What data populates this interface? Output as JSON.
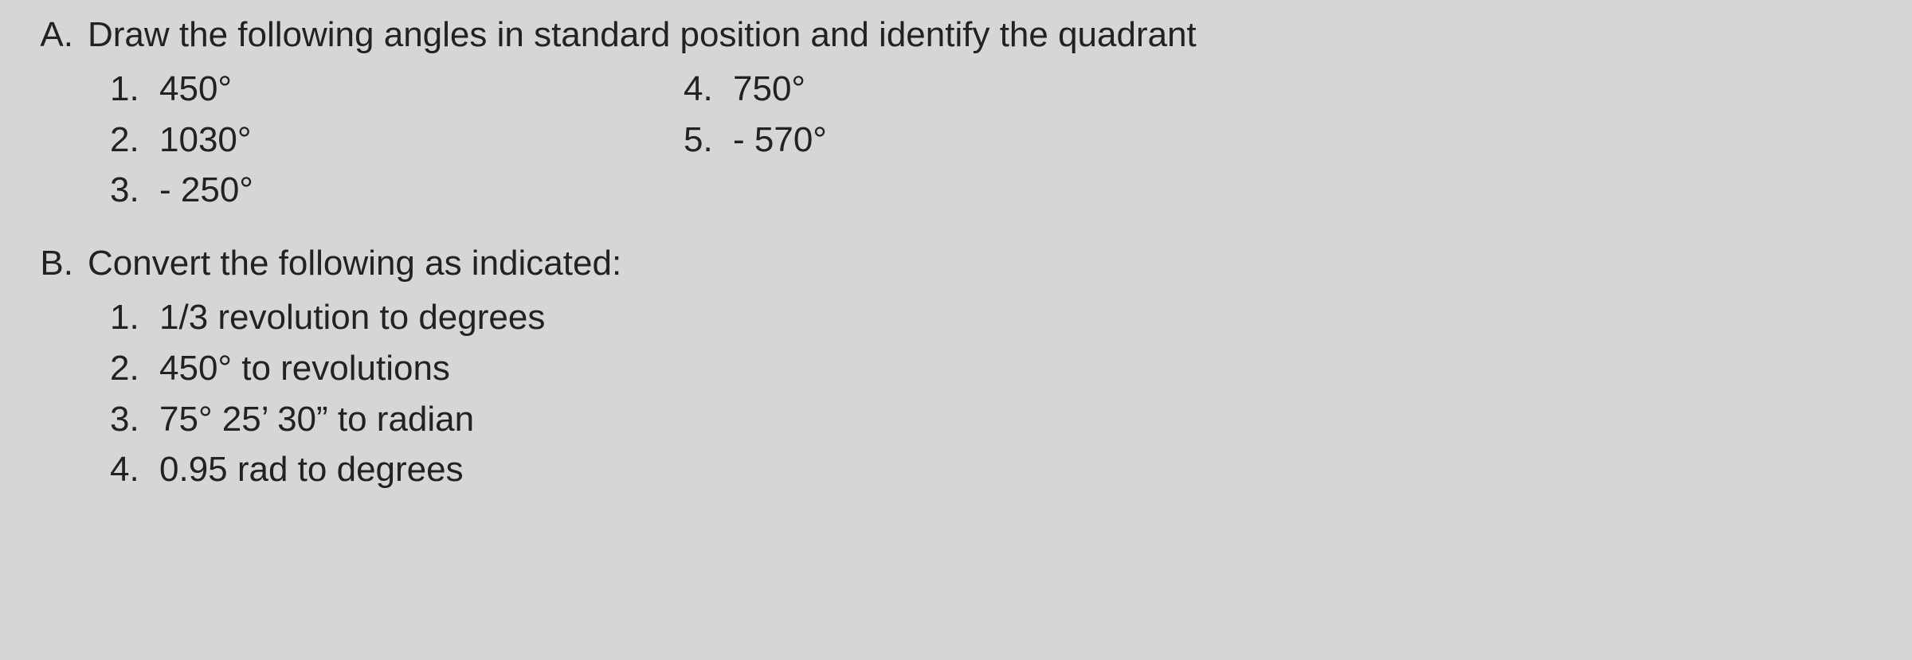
{
  "background_color": "#d5d7d4",
  "text_color": "#222222",
  "font_family": "Arial",
  "font_size_pt": 33,
  "sectionA": {
    "letter": "A.",
    "heading": "Draw the following angles in standard position and identify the quadrant",
    "col_left": [
      {
        "num": "1.",
        "val": "450°"
      },
      {
        "num": "2.",
        "val": "1030°"
      },
      {
        "num": "3.",
        "val": "- 250°"
      }
    ],
    "col_right": [
      {
        "num": "4.",
        "val": "750°"
      },
      {
        "num": "5.",
        "val": "- 570°"
      }
    ]
  },
  "sectionB": {
    "letter": "B.",
    "heading": "Convert the following as indicated:",
    "items": [
      {
        "num": "1.",
        "val": "1/3 revolution to degrees"
      },
      {
        "num": "2.",
        "val": "450° to revolutions"
      },
      {
        "num": "3.",
        "val": "75° 25’ 30” to radian"
      },
      {
        "num": "4.",
        "val": "0.95 rad to degrees"
      }
    ]
  }
}
